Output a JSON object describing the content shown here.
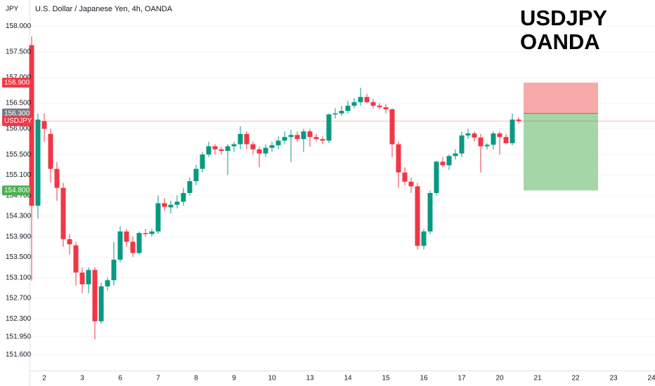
{
  "chart_data": {
    "type": "candlestick",
    "symbol": "USDJPY",
    "currency": "JPY",
    "header": "U.S. Dollar / Japanese Yen, 4h, OANDA",
    "title": [
      "USDJPY",
      "OANDA"
    ],
    "up_color": "#089981",
    "down_color": "#f23645",
    "open": [
      157.63,
      154.5,
      156.15,
      155.9,
      155.22,
      154.85,
      153.85,
      153.73,
      153.2,
      152.97,
      153.25,
      152.25,
      152.93,
      153.05,
      153.45,
      154.0,
      153.8,
      153.58,
      153.97,
      153.95,
      154.0,
      154.55,
      154.47,
      154.52,
      154.58,
      154.75,
      154.98,
      155.22,
      155.5,
      155.66,
      155.6,
      155.57,
      155.66,
      155.7,
      155.9,
      155.7,
      155.6,
      155.52,
      155.63,
      155.68,
      155.77,
      155.84,
      155.88,
      155.8,
      155.95,
      155.84,
      155.8,
      155.77,
      156.28,
      156.3,
      156.35,
      156.45,
      156.52,
      156.62,
      156.52,
      156.45,
      156.42,
      156.38,
      155.7,
      155.15,
      154.97,
      154.88,
      153.72,
      154.0,
      154.75,
      155.36,
      155.29,
      155.47,
      155.52,
      155.87,
      155.91,
      155.83,
      155.66,
      155.69,
      155.91,
      155.84,
      155.72,
      156.18
    ],
    "high": [
      157.8,
      156.3,
      156.3,
      156.0,
      155.35,
      154.95,
      153.95,
      153.8,
      153.3,
      153.3,
      153.3,
      153.0,
      153.1,
      153.8,
      154.1,
      154.05,
      153.9,
      154.0,
      154.05,
      154.05,
      154.7,
      154.65,
      154.6,
      154.7,
      154.85,
      155.05,
      155.3,
      155.55,
      155.75,
      155.7,
      155.65,
      155.7,
      155.75,
      156.05,
      155.95,
      155.75,
      155.65,
      155.7,
      155.75,
      155.85,
      155.95,
      155.98,
      155.95,
      156.0,
      156.0,
      155.9,
      155.85,
      156.3,
      156.4,
      156.45,
      156.55,
      156.6,
      156.8,
      156.68,
      156.58,
      156.5,
      156.48,
      156.4,
      155.75,
      155.25,
      155.05,
      154.95,
      154.05,
      154.8,
      155.38,
      155.45,
      155.5,
      155.6,
      155.95,
      156.0,
      155.95,
      155.9,
      155.72,
      155.95,
      155.95,
      155.9,
      156.3,
      156.22
    ],
    "low": [
      153.04,
      154.25,
      155.75,
      154.95,
      154.6,
      153.7,
      153.55,
      152.95,
      152.8,
      152.8,
      151.9,
      152.2,
      152.85,
      152.95,
      153.4,
      153.7,
      153.5,
      153.55,
      153.9,
      153.9,
      153.95,
      154.4,
      154.35,
      154.45,
      154.5,
      154.7,
      154.9,
      155.15,
      155.45,
      155.5,
      155.5,
      155.1,
      155.55,
      155.6,
      155.6,
      155.5,
      155.25,
      155.45,
      155.55,
      155.6,
      155.7,
      155.35,
      155.75,
      155.55,
      155.65,
      155.75,
      155.7,
      155.72,
      156.2,
      156.25,
      156.3,
      156.4,
      156.45,
      156.5,
      156.4,
      156.38,
      156.3,
      155.45,
      154.85,
      154.9,
      154.75,
      153.65,
      153.65,
      153.95,
      154.7,
      155.25,
      155.2,
      155.4,
      155.45,
      155.8,
      155.75,
      155.15,
      155.6,
      155.6,
      155.5,
      155.7,
      155.68,
      156.1
    ],
    "close": [
      154.5,
      156.18,
      156.0,
      155.22,
      154.85,
      153.85,
      153.75,
      153.2,
      152.97,
      153.25,
      152.25,
      152.93,
      153.05,
      153.45,
      154.0,
      153.8,
      153.58,
      153.97,
      153.95,
      154.0,
      154.55,
      154.48,
      154.52,
      154.58,
      154.75,
      154.98,
      155.22,
      155.5,
      155.66,
      155.6,
      155.57,
      155.66,
      155.7,
      155.9,
      155.7,
      155.6,
      155.52,
      155.63,
      155.68,
      155.77,
      155.84,
      155.88,
      155.8,
      155.95,
      155.84,
      155.8,
      155.77,
      156.28,
      156.3,
      156.35,
      156.45,
      156.52,
      156.62,
      156.52,
      156.45,
      156.42,
      156.38,
      155.7,
      155.15,
      154.97,
      154.88,
      153.72,
      154.0,
      154.75,
      155.36,
      155.29,
      155.47,
      155.52,
      155.87,
      155.91,
      155.83,
      155.66,
      155.69,
      155.91,
      155.84,
      155.72,
      156.18,
      156.15
    ],
    "xticks": [
      "2",
      "3",
      "6",
      "7",
      "8",
      "9",
      "10",
      "13",
      "14",
      "15",
      "16",
      "17",
      "20",
      "21",
      "22",
      "23",
      "24"
    ],
    "ylim": [
      151.29,
      158.51
    ],
    "yticks": [
      {
        "value": 158.0,
        "label": "158.000"
      },
      {
        "value": 157.5,
        "label": "157.500"
      },
      {
        "value": 157.0,
        "label": "157.000"
      },
      {
        "value": 156.5,
        "label": "156.500"
      },
      {
        "value": 156.0,
        "label": "156.000"
      },
      {
        "value": 155.5,
        "label": "155.500"
      },
      {
        "value": 155.1,
        "label": "155.100"
      },
      {
        "value": 154.7,
        "label": "154.700"
      },
      {
        "value": 154.3,
        "label": "154.300"
      },
      {
        "value": 153.9,
        "label": "153.900"
      },
      {
        "value": 153.5,
        "label": "153.500"
      },
      {
        "value": 153.1,
        "label": "153.100"
      },
      {
        "value": 152.7,
        "label": "152.700"
      },
      {
        "value": 152.3,
        "label": "152.300"
      },
      {
        "value": 151.95,
        "label": "151.950"
      },
      {
        "value": 151.6,
        "label": "151.600"
      }
    ],
    "position": {
      "target": {
        "value": 156.9,
        "label": "156.900",
        "color": "#f7a9a7"
      },
      "entry": {
        "value": 156.3,
        "label": "156.300",
        "color": "#787b86"
      },
      "stop": {
        "value": 154.8,
        "label": "154.800",
        "color": "#a5d6a7"
      }
    }
  }
}
